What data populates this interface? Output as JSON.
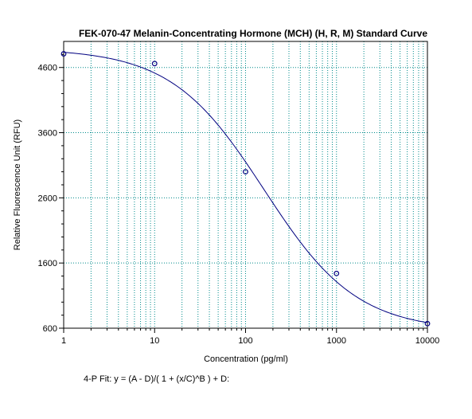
{
  "chart_data": {
    "type": "scatter",
    "title": "FEK-070-47 Melanin-Concentrating Hormone (MCH) (H, R, M) Standard Curve",
    "xlabel": "Concentration (pg/ml)",
    "ylabel": "Relative Fluorescence Unit (RFU)",
    "x_scale": "log",
    "xlim": [
      1,
      10000
    ],
    "ylim": [
      600,
      5000
    ],
    "x_ticks": [
      1,
      10,
      100,
      1000,
      10000
    ],
    "x_tick_labels": [
      "1",
      "10",
      "100",
      "1000",
      "10000"
    ],
    "y_ticks": [
      600,
      1600,
      2600,
      3600,
      4600
    ],
    "y_tick_labels": [
      "600",
      "1600",
      "2600",
      "3600",
      "4600"
    ],
    "grid": true,
    "series": [
      {
        "type": "scatter",
        "x": [
          1,
          10,
          100,
          1000,
          10000
        ],
        "y": [
          4810,
          4660,
          3000,
          1440,
          670
        ]
      },
      {
        "type": "line",
        "fit": "4-parameter logistic",
        "params": {
          "A": 4890,
          "B": 0.85,
          "C": 160,
          "D": 560
        }
      }
    ],
    "fit_equation": "4-P Fit: y = (A - D)/( 1 + (x/C)^B ) + D:",
    "colors": {
      "curve": "#000080",
      "points": "#000080",
      "grid": "#008b8b",
      "axes": "#000000"
    }
  }
}
